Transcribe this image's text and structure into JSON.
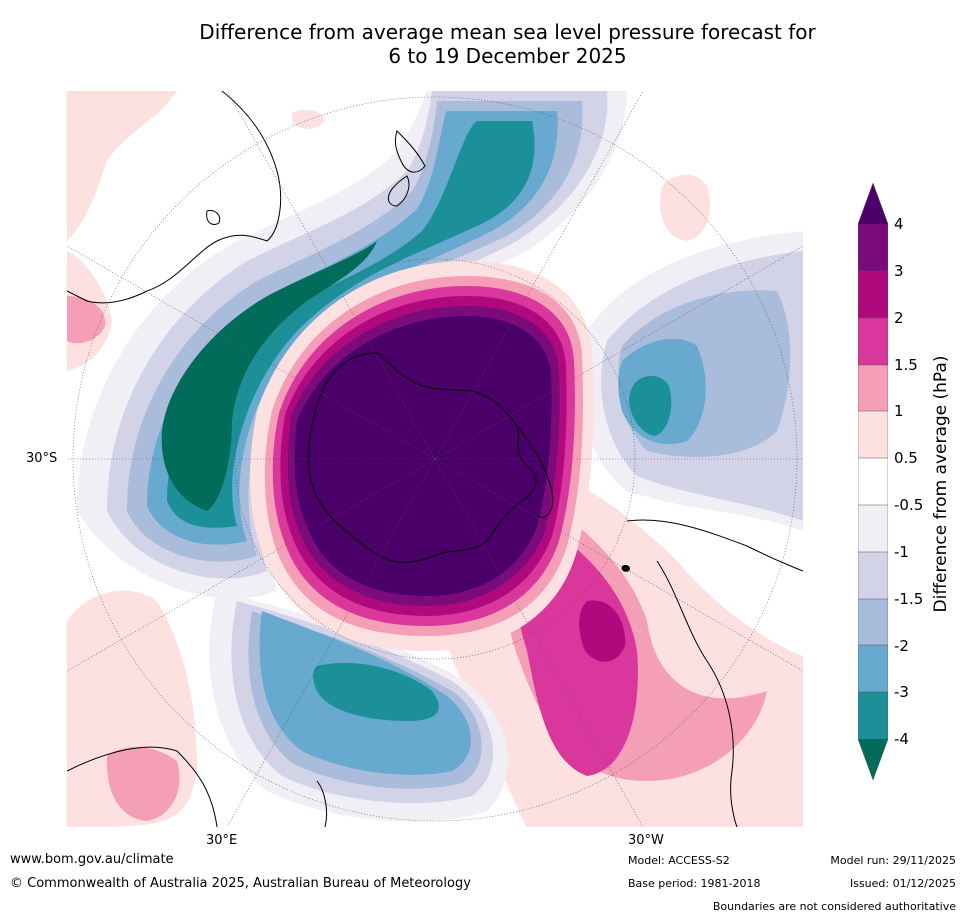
{
  "title": {
    "line1": "Difference from average mean sea level pressure forecast for",
    "line2": "6 to 19 December 2025"
  },
  "axes": {
    "lat_label": "30°S",
    "lon_label_left": "30°E",
    "lon_label_right": "30°W"
  },
  "colorbar": {
    "title": "Difference from average (hPa)",
    "ticks": [
      "4",
      "3",
      "2",
      "1.5",
      "1",
      "0.5",
      "-0.5",
      "-1",
      "-1.5",
      "-2",
      "-3",
      "-4"
    ],
    "colors": {
      "gt4": "#4a0068",
      "c3_4": "#7b0a7a",
      "c2_3": "#b0087d",
      "c15_2": "#d9379b",
      "c1_15": "#f59eb7",
      "c05_1": "#fde0e0",
      "neutral": "#ffffff",
      "n05_1": "#f1eef5",
      "n1_15": "#d2d3e6",
      "n15_2": "#a9bcdb",
      "n2_3": "#67a9cf",
      "n3_4": "#1c9099",
      "lt4": "#016c59"
    }
  },
  "footer": {
    "website": "www.bom.gov.au/climate",
    "copyright": "© Commonwealth of Australia 2025, Australian Bureau of Meteorology",
    "model": "Model: ACCESS-S2",
    "base_period": "Base period: 1981-2018",
    "model_run": "Model run: 29/11/2025",
    "issued": "Issued: 01/12/2025",
    "disclaimer": "Boundaries are not considered authoritative"
  }
}
